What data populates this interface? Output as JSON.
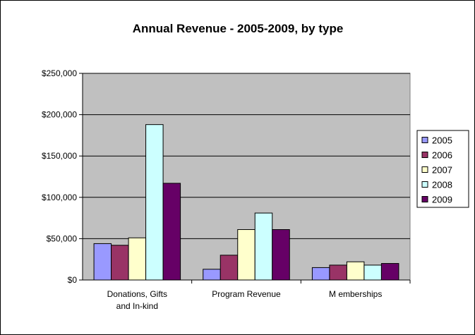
{
  "chart_data": {
    "type": "bar",
    "title": "Annual Revenue - 2005-2009, by type",
    "xlabel": "",
    "ylabel": "",
    "categories": [
      [
        "Donations, Gifts",
        "and In-kind"
      ],
      [
        "Program Revenue"
      ],
      [
        "M emberships"
      ]
    ],
    "series": [
      {
        "name": "2005",
        "color": "#9999ff",
        "values": [
          44000,
          13000,
          15000
        ]
      },
      {
        "name": "2006",
        "color": "#993366",
        "values": [
          42000,
          30000,
          18000
        ]
      },
      {
        "name": "2007",
        "color": "#ffffcc",
        "values": [
          51000,
          61000,
          22000
        ]
      },
      {
        "name": "2008",
        "color": "#ccffff",
        "values": [
          188000,
          81000,
          18000
        ]
      },
      {
        "name": "2009",
        "color": "#660066",
        "values": [
          117000,
          61000,
          20000
        ]
      }
    ],
    "ylim": [
      0,
      250000
    ],
    "yticks": [
      0,
      50000,
      100000,
      150000,
      200000,
      250000
    ],
    "ytick_labels": [
      "$0",
      "$50,000",
      "$100,000",
      "$150,000",
      "$200,000",
      "$250,000"
    ],
    "grid": true,
    "plot_background": "#c0c0c0",
    "legend_position": "right"
  }
}
